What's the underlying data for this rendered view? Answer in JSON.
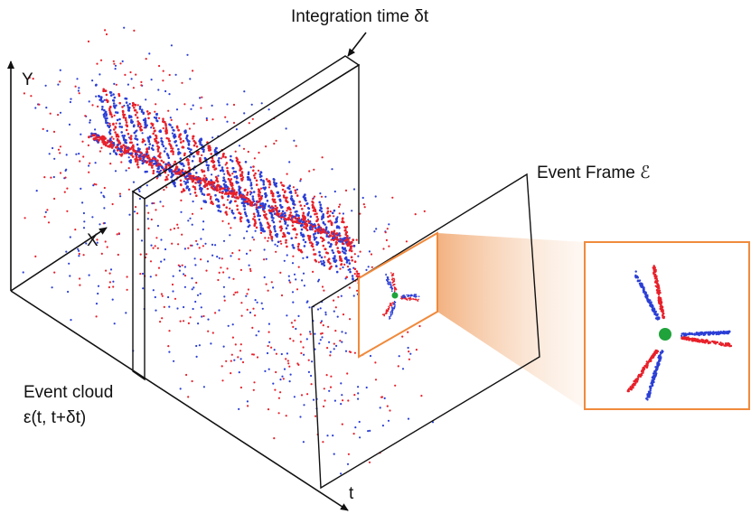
{
  "labels": {
    "integration_time": "Integration time δt",
    "y_axis": "Y",
    "x_axis": "X",
    "t_axis": "t",
    "event_frame": "Event Frame ℰ",
    "event_cloud": "Event cloud",
    "event_cloud_formula": "ε(t, t+δt)"
  }
}
